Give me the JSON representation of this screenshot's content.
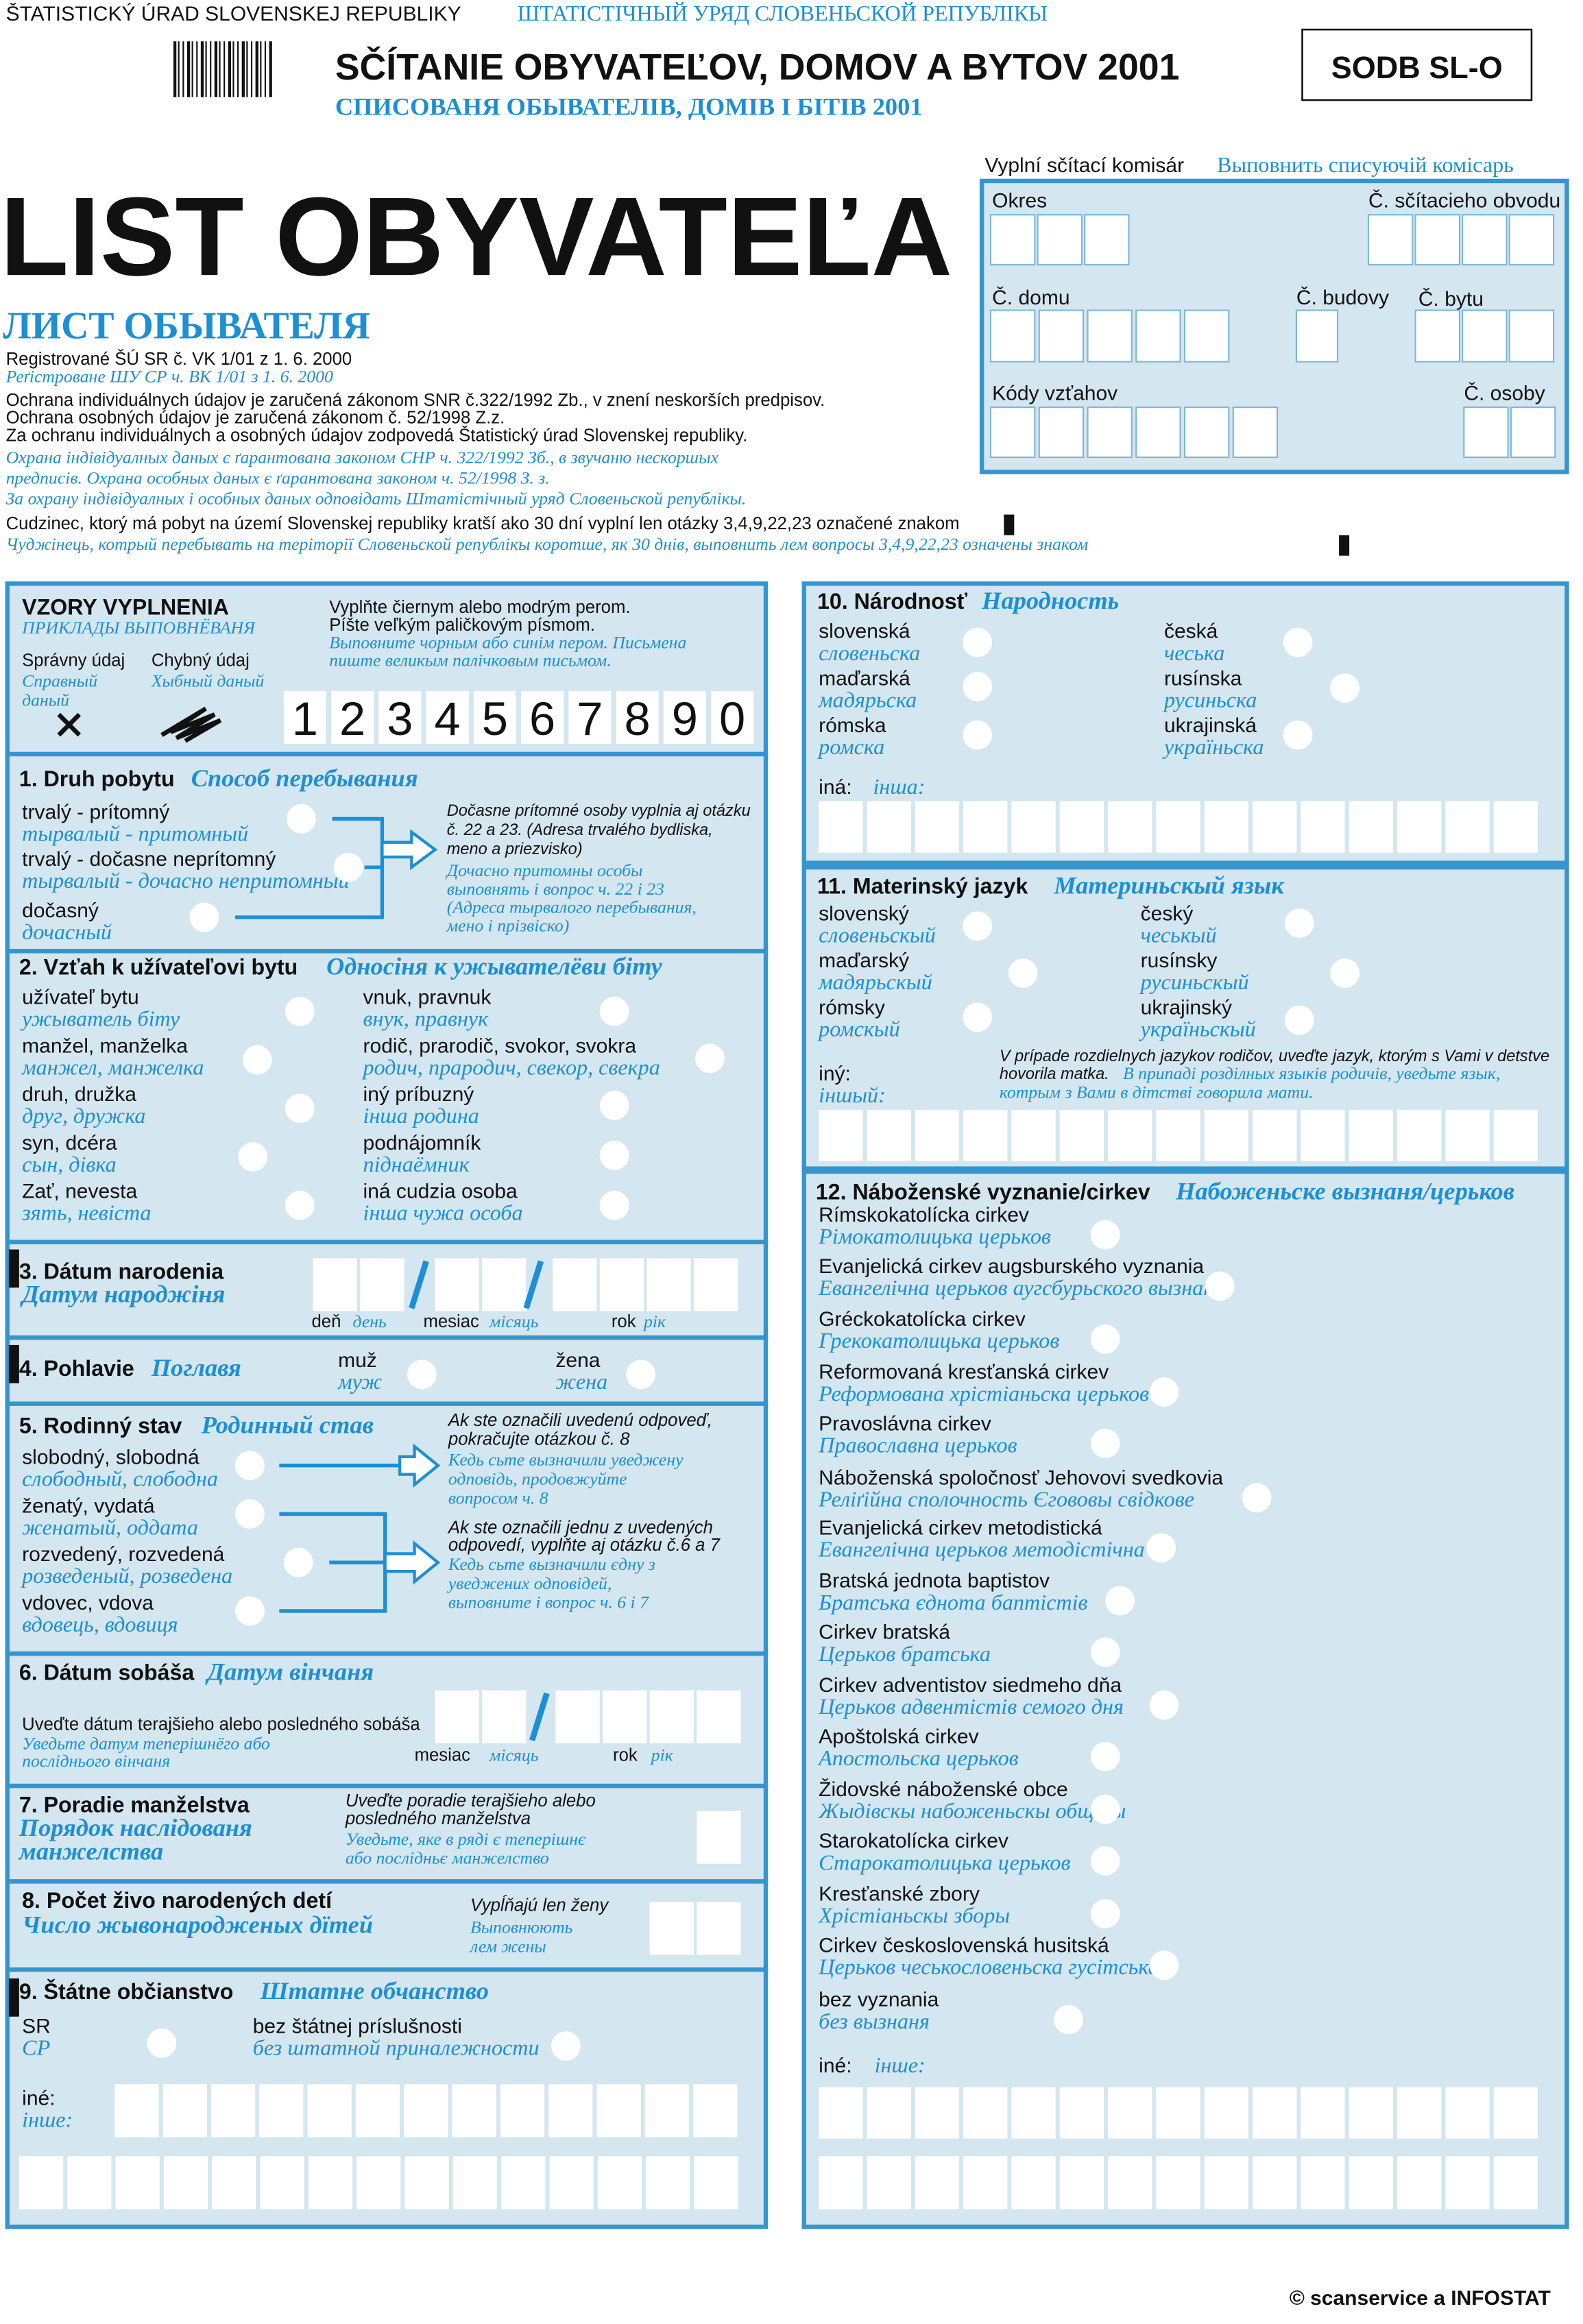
{
  "header": {
    "office": "ŠTATISTICKÝ ÚRAD SLOVENSKEJ REPUBLIKY",
    "office_ru": "ШТАТІСТІЧНЫЙ УРЯД СЛОВЕНЬСКОЙ РЕПУБЛІКЫ",
    "census": "SČÍTANIE OBYVATEĽOV, DOMOV A BYTOV 2001",
    "census_ru": "СПИСОВАНЯ ОБЫВАТЕЛІВ, ДОМІВ І БІТІВ 2001",
    "code": "SODB SL-O",
    "form": "LIST OBYVATEĽA",
    "form_ru": "ЛИСТ ОБЫВАТЕЛЯ",
    "notes": [
      "Registrované ŠÚ SR č. VK 1/01 z 1. 6. 2000",
      "Реґістроване ШУ СР ч. ВК 1/01 з 1. 6. 2000",
      "Ochrana individuálnych údajov je zaručená zákonom SNR č.322/1992 Zb., v znení neskorších predpisov.",
      "Ochrana osobných údajov je zaručená zákonom č. 52/1998 Z.z.",
      "Za ochranu individuálnych a osobných údajov zodpovedá Štatistický úrad Slovenskej republiky.",
      "Охрана індівідуалных даных є ґарантована законом СНР ч. 322/1992 Зб., в звучаню нескоршых",
      "предписів. Охрана особных даных є ґарантована законом ч. 52/1998 З. з.",
      "За охрану індівідуалных і особных даных одповідать Штатістічный уряд Словеньской републікы.",
      "Cudzinec, ktorý má pobyt na území Slovenskej republiky kratší ako 30 dní vyplní len otázky 3,4,9,22,23 označené znakom",
      "Чуджінець, котрый перебывать на теріторії Словеньской републікы коротше, як 30 днів, выповнить лем вопросы 3,4,9,22,23 означены знаком"
    ]
  },
  "commissioner": {
    "label": "Vyplní sčítací komisár",
    "label_ru": "Выповнить списуючій комісарь",
    "fields": [
      "Okres",
      "Č. sčítacieho obvodu",
      "Č. domu",
      "Č. budovy",
      "Č. bytu",
      "Kódy vzťahov",
      "Č. osoby"
    ]
  },
  "sample": {
    "title": "VZORY VYPLNENIA",
    "title_ru": "ПРИКЛАДЫ ВЫПОВНЁВАНЯ",
    "correct": "Správny údaj",
    "correct_ru": [
      "Справный",
      "даный"
    ],
    "wrong": "Chybný údaj",
    "wrong_ru": "Хыбный даный",
    "instructions": [
      "Vyplňte čiernym alebo modrým perom.",
      "Píšte veľkým paličkovým písmom."
    ],
    "instructions_ru": [
      "Выповните чорным або синім пером. Письмена",
      "пиште великым палічковым письмом."
    ],
    "digits": [
      "1",
      "2",
      "3",
      "4",
      "5",
      "6",
      "7",
      "8",
      "9",
      "0"
    ]
  },
  "q1": {
    "title": "1. Druh pobytu",
    "title_ru": "Способ перебывания",
    "options": [
      {
        "sk": "trvalý - prítomný",
        "ru": "тырвалый - притомный"
      },
      {
        "sk": "trvalý - dočasne neprítomný",
        "ru": "тырвалый - дочасно непритомный"
      },
      {
        "sk": "dočasný",
        "ru": "дочасный"
      }
    ],
    "note": [
      "Dočasne prítomné osoby  vyplnia aj otázku",
      "č. 22 a 23.  (Adresa trvalého bydliska,",
      "meno a priezvisko)"
    ],
    "note_ru": [
      "Дочасно притомны особы",
      "выповнять і вопрос ч. 22 і 23",
      "(Адреса тырвалого перебывания,",
      "мено і прізвіско)"
    ]
  },
  "q2": {
    "title": "2. Vzťah k užívateľovi bytu",
    "title_ru": "Односіня к ужывателёви біту",
    "options": [
      {
        "sk": "užívateľ bytu",
        "ru": "ужыватель біту"
      },
      {
        "sk": "manžel, manželka",
        "ru": "манжел, манжелка"
      },
      {
        "sk": "druh, družka",
        "ru": "друг, дружка"
      },
      {
        "sk": "syn, dcéra",
        "ru": "сын, дівка"
      },
      {
        "sk": "Zať, nevesta",
        "ru": "зять, невіста"
      },
      {
        "sk": "vnuk, pravnuk",
        "ru": "внук, правнук"
      },
      {
        "sk": "rodič, prarodič, svokor, svokra",
        "ru": "родич, прародич, свекор, свекра"
      },
      {
        "sk": "iný príbuzný",
        "ru": "інша родина"
      },
      {
        "sk": "podnájomník",
        "ru": "піднаёмник"
      },
      {
        "sk": "iná cudzia osoba",
        "ru": "інша чужа особа"
      }
    ]
  },
  "q3": {
    "title": "3. Dátum narodenia",
    "title_ru": "Датум народжіня",
    "day": "deň",
    "day_ru": "день",
    "month": "mesiac",
    "month_ru": "місяць",
    "year": "rok",
    "year_ru": "рік"
  },
  "q4": {
    "title": "4. Pohlavie",
    "title_ru": "Поглавя",
    "options": [
      {
        "sk": "muž",
        "ru": "муж"
      },
      {
        "sk": "žena",
        "ru": "жена"
      }
    ]
  },
  "q5": {
    "title": "5. Rodinný stav",
    "title_ru": "Родинный став",
    "options": [
      {
        "sk": "slobodný, slobodná",
        "ru": "слободный, слободна"
      },
      {
        "sk": "ženatý, vydatá",
        "ru": "женатый, оддата"
      },
      {
        "sk": "rozvedený, rozvedená",
        "ru": "розведеный, розведена"
      },
      {
        "sk": "vdovec, vdova",
        "ru": "вдовець, вдовиця"
      }
    ],
    "note1": [
      "Ak ste označili uvedenú odpoveď,",
      "pokračujte otázkou č. 8"
    ],
    "note1_ru": [
      "Кедь сьте вызначили уведжену",
      "одповідь, продовжуйте",
      "вопросом ч. 8"
    ],
    "note2": [
      "Ak ste označili jednu z uvedených",
      "odpovedí, vyplňte aj otázku č.6 a 7"
    ],
    "note2_ru": [
      "Кедь сьте вызначили єдну з",
      "уведжених одповідей,",
      "выповните і вопрос ч. 6 і 7"
    ]
  },
  "q6": {
    "title": "6. Dátum sobáša",
    "title_ru": "Датум вінчаня",
    "note": "Uveďte dátum terajšieho alebo posledného sobáša",
    "note_ru": [
      "Уведьте датум теперішнёго або",
      "послідньoго вінчаня"
    ],
    "month": "mesiac",
    "month_ru": "місяць",
    "year": "rok",
    "year_ru": "рік"
  },
  "q7": {
    "title": "7. Poradie manželstva",
    "title_ru": [
      "Порядок наслідованя",
      "манжелства"
    ],
    "note": [
      "Uveďte poradie terajšieho alebo",
      "posledného manželstva"
    ],
    "note_ru": [
      "Уведьте, яке в ряді є теперішнє",
      "або послідньє манжелство"
    ]
  },
  "q8": {
    "title": "8. Počet živo narodených detí",
    "title_ru": "Число жывонародженых дїтей",
    "note": "Vypĺňajú len ženy",
    "note_ru": [
      "Выповнюють",
      "лем жены"
    ]
  },
  "q9": {
    "title": "9. Štátne občianstvo",
    "title_ru": "Штатне обчанство",
    "options": [
      {
        "sk": "SR",
        "ru": "СР"
      },
      {
        "sk": "bez štátnej príslušnosti",
        "ru": "без штатной приналежности"
      }
    ],
    "other": "iné:",
    "other_ru": "інше:"
  },
  "q10": {
    "title": "10. Národnosť",
    "title_ru": "Народность",
    "options": [
      {
        "sk": "slovenská",
        "ru": "словеньска"
      },
      {
        "sk": "maďarská",
        "ru": "мадярьска"
      },
      {
        "sk": "rómska",
        "ru": "ромска"
      },
      {
        "sk": "česká",
        "ru": "чеська"
      },
      {
        "sk": "rusínska",
        "ru": "русиньска"
      },
      {
        "sk": "ukrajinská",
        "ru": "україньска"
      }
    ],
    "other": "iná:",
    "other_ru": "інша:"
  },
  "q11": {
    "title": "11. Materinský jazyk",
    "title_ru": "Материньскый язык",
    "options": [
      {
        "sk": "slovenský",
        "ru": "словеньскый"
      },
      {
        "sk": "maďarský",
        "ru": "мадярьскый"
      },
      {
        "sk": "rómsky",
        "ru": "ромскый"
      },
      {
        "sk": "český",
        "ru": "чеськый"
      },
      {
        "sk": "rusínsky",
        "ru": "русиньскый"
      },
      {
        "sk": "ukrajinský",
        "ru": "україньскый"
      }
    ],
    "other": "iný:",
    "other_ru": "іншый:",
    "note": [
      "V prípade rozdielnych jazykov rodičov, uveďte jazyk, ktorým s Vami v detstve",
      "hovorila matka."
    ],
    "note_ru": [
      "В припаді розділных языків родичів, уведьте язык,",
      "котрым з Вами в дітстві говорила мати."
    ]
  },
  "q12": {
    "title": "12. Náboženské vyznanie/cirkev",
    "title_ru": "Набоженьске вызнаня/церьков",
    "options": [
      {
        "sk": "Rímskokatolícka cirkev",
        "ru": "Рімокатолицька церьков"
      },
      {
        "sk": "Evanjelická cirkev augsburského vyznania",
        "ru": "Евангелічна церьков аугсбурьского вызнаня"
      },
      {
        "sk": "Gréckokatolícka cirkev",
        "ru": "Грекокатолицька церьков"
      },
      {
        "sk": "Reformovaná kresťanská cirkev",
        "ru": "Реформована хрістіаньска церьков"
      },
      {
        "sk": "Pravoslávna cirkev",
        "ru": "Православна церьков"
      },
      {
        "sk": "Náboženská spoločnosť Jehovovi svedkovia",
        "ru": "Реліґійна сполочность Єгововы свідкове"
      },
      {
        "sk": "Evanjelická cirkev metodistická",
        "ru": "Евангелічна церьков методістічна"
      },
      {
        "sk": "Bratská jednota baptistov",
        "ru": "Братська єднота баптістів"
      },
      {
        "sk": "Cirkev bratská",
        "ru": "Церьков братська"
      },
      {
        "sk": "Cirkev adventistov siedmeho dňa",
        "ru": "Церьков адвентістів семого дня"
      },
      {
        "sk": "Apoštolská cirkev",
        "ru": "Апостольска церьков"
      },
      {
        "sk": "Židovské náboženské obce",
        "ru": "Жыдівскы набоженьскы общіны"
      },
      {
        "sk": "Starokatolícka cirkev",
        "ru": "Старокатолицька церьков"
      },
      {
        "sk": "Kresťanské zbory",
        "ru": "Хрістіаньскы зборы"
      },
      {
        "sk": "Cirkev československá husitská",
        "ru": "Церьков чеськословеньска гусітська"
      },
      {
        "sk": "bez vyznania",
        "ru": "без вызнаня"
      }
    ],
    "other": "iné:",
    "other_ru": "інше:"
  },
  "footer": "© scanservice a INFOSTAT"
}
